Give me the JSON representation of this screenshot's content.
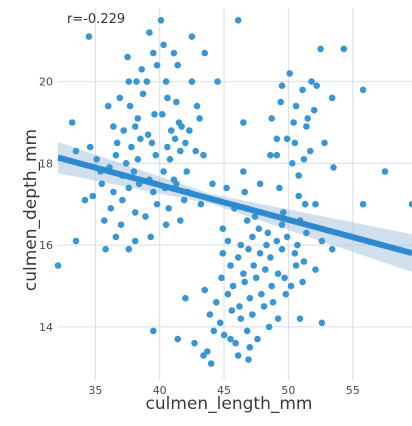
{
  "chart_data": {
    "type": "scatter",
    "title": "",
    "annotation": "r=-0.229",
    "xlabel": "culmen_length_mm",
    "ylabel": "culmen_depth_mm",
    "xlim": [
      32.1,
      59.6
    ],
    "ylim": [
      12.7,
      21.8
    ],
    "xticks": [
      35,
      40,
      45,
      50,
      55
    ],
    "yticks": [
      14,
      16,
      18,
      20
    ],
    "grid": true,
    "regression": {
      "slope": -0.085,
      "intercept": 20.87
    },
    "colors": {
      "points": "#3a95d3",
      "line": "#2e8ad0",
      "band": "#a9c7e0",
      "grid": "#d4dfe8",
      "background": "#ffffff"
    },
    "points": [
      [
        34.5,
        21.1
      ],
      [
        39.2,
        21.2
      ],
      [
        40.3,
        20.9
      ],
      [
        42.5,
        21.1
      ],
      [
        40.1,
        21.5
      ],
      [
        46.1,
        21.5
      ],
      [
        37.5,
        20.6
      ],
      [
        39.5,
        20.7
      ],
      [
        41.1,
        20.7
      ],
      [
        43.5,
        20.7
      ],
      [
        38.6,
        20.3
      ],
      [
        39.8,
        20.4
      ],
      [
        41.4,
        20.4
      ],
      [
        52.5,
        20.8
      ],
      [
        54.3,
        20.8
      ],
      [
        37.6,
        20.0
      ],
      [
        38.2,
        20.0
      ],
      [
        39.0,
        20.0
      ],
      [
        40.5,
        20.0
      ],
      [
        42.5,
        20.0
      ],
      [
        44.5,
        20.0
      ],
      [
        50.1,
        20.2
      ],
      [
        51.8,
        20.0
      ],
      [
        52.2,
        19.9
      ],
      [
        55.8,
        19.8
      ],
      [
        49.5,
        19.9
      ],
      [
        51.1,
        19.8
      ],
      [
        36.0,
        19.4
      ],
      [
        36.9,
        19.6
      ],
      [
        37.7,
        19.4
      ],
      [
        38.7,
        19.7
      ],
      [
        40.6,
        19.6
      ],
      [
        41.3,
        19.5
      ],
      [
        42.9,
        19.4
      ],
      [
        49.4,
        19.5
      ],
      [
        50.6,
        19.4
      ],
      [
        53.4,
        19.6
      ],
      [
        38.3,
        19.1
      ],
      [
        39.6,
        19.2
      ],
      [
        40.2,
        19.2
      ],
      [
        41.5,
        19.0
      ],
      [
        43.1,
        19.1
      ],
      [
        46.5,
        19.0
      ],
      [
        48.7,
        19.1
      ],
      [
        50.4,
        19.0
      ],
      [
        51.5,
        19.1
      ],
      [
        52.0,
        19.3
      ],
      [
        33.2,
        19.0
      ],
      [
        36.4,
        18.9
      ],
      [
        37.2,
        18.8
      ],
      [
        38.1,
        18.9
      ],
      [
        39.1,
        18.7
      ],
      [
        40.9,
        18.8
      ],
      [
        41.7,
        18.9
      ],
      [
        42.3,
        18.8
      ],
      [
        49.9,
        18.6
      ],
      [
        51.4,
        18.9
      ],
      [
        52.8,
        18.5
      ],
      [
        34.6,
        18.4
      ],
      [
        36.7,
        18.5
      ],
      [
        37.8,
        18.4
      ],
      [
        38.5,
        18.6
      ],
      [
        39.4,
        18.5
      ],
      [
        40.6,
        18.4
      ],
      [
        41.2,
        18.6
      ],
      [
        42.0,
        18.5
      ],
      [
        42.8,
        18.3
      ],
      [
        49.1,
        18.6
      ],
      [
        50.5,
        18.5
      ],
      [
        51.7,
        18.3
      ],
      [
        33.5,
        18.3
      ],
      [
        35.1,
        18.1
      ],
      [
        36.6,
        18.2
      ],
      [
        37.4,
        18.0
      ],
      [
        38.3,
        18.1
      ],
      [
        39.7,
        18.2
      ],
      [
        40.8,
        18.1
      ],
      [
        41.6,
        18.3
      ],
      [
        43.4,
        18.2
      ],
      [
        48.6,
        18.2
      ],
      [
        49.1,
        18.2
      ],
      [
        50.3,
        18.0
      ],
      [
        51.2,
        18.1
      ],
      [
        53.5,
        17.9
      ],
      [
        35.4,
        17.8
      ],
      [
        36.1,
        17.9
      ],
      [
        37.1,
        17.7
      ],
      [
        38.0,
        17.8
      ],
      [
        39.2,
        17.6
      ],
      [
        40.3,
        17.8
      ],
      [
        41.1,
        17.6
      ],
      [
        42.1,
        17.8
      ],
      [
        46.5,
        17.8
      ],
      [
        50.8,
        17.7
      ],
      [
        57.5,
        17.8
      ],
      [
        34.2,
        17.1
      ],
      [
        35.5,
        17.5
      ],
      [
        36.4,
        17.3
      ],
      [
        37.6,
        17.4
      ],
      [
        38.4,
        17.5
      ],
      [
        39.5,
        17.3
      ],
      [
        40.4,
        17.4
      ],
      [
        41.3,
        17.5
      ],
      [
        42.2,
        17.3
      ],
      [
        44.1,
        17.5
      ],
      [
        45.2,
        17.4
      ],
      [
        46.6,
        17.3
      ],
      [
        47.8,
        17.5
      ],
      [
        49.3,
        17.4
      ],
      [
        50.8,
        17.2
      ],
      [
        52.1,
        17.0
      ],
      [
        34.8,
        17.2
      ],
      [
        36.2,
        16.9
      ],
      [
        37.1,
        17.1
      ],
      [
        38.1,
        16.8
      ],
      [
        39.8,
        17.0
      ],
      [
        40.7,
        16.9
      ],
      [
        41.9,
        17.1
      ],
      [
        43.2,
        17.0
      ],
      [
        45.8,
        16.9
      ],
      [
        47.4,
        16.7
      ],
      [
        49.6,
        16.8
      ],
      [
        51.3,
        17.0
      ],
      [
        59.6,
        17.0
      ],
      [
        55.8,
        17.0
      ],
      [
        35.7,
        16.6
      ],
      [
        37.0,
        16.5
      ],
      [
        38.9,
        16.7
      ],
      [
        40.5,
        16.5
      ],
      [
        41.6,
        16.6
      ],
      [
        44.9,
        16.4
      ],
      [
        46.8,
        16.6
      ],
      [
        47.7,
        16.4
      ],
      [
        48.4,
        16.3
      ],
      [
        49.5,
        16.5
      ],
      [
        50.9,
        16.6
      ],
      [
        33.5,
        16.1
      ],
      [
        36.6,
        16.2
      ],
      [
        38.1,
        16.1
      ],
      [
        39.3,
        16.2
      ],
      [
        45.3,
        16.1
      ],
      [
        46.3,
        16.0
      ],
      [
        47.2,
        16.2
      ],
      [
        48.3,
        16.0
      ],
      [
        49.1,
        16.1
      ],
      [
        49.9,
        16.2
      ],
      [
        50.7,
        16.0
      ],
      [
        51.4,
        16.3
      ],
      [
        52.6,
        16.1
      ],
      [
        35.8,
        15.9
      ],
      [
        37.6,
        15.9
      ],
      [
        44.9,
        15.8
      ],
      [
        46.1,
        15.7
      ],
      [
        46.9,
        15.9
      ],
      [
        47.8,
        15.8
      ],
      [
        48.6,
        15.7
      ],
      [
        49.5,
        15.9
      ],
      [
        50.5,
        15.8
      ],
      [
        51.2,
        15.6
      ],
      [
        53.4,
        15.9
      ],
      [
        45.5,
        15.5
      ],
      [
        46.5,
        15.3
      ],
      [
        47.3,
        15.5
      ],
      [
        48.2,
        15.4
      ],
      [
        49.2,
        15.3
      ],
      [
        50.6,
        15.5
      ],
      [
        52.1,
        15.4
      ],
      [
        32.1,
        15.5
      ],
      [
        44.8,
        15.2
      ],
      [
        45.7,
        15.0
      ],
      [
        46.6,
        15.1
      ],
      [
        47.5,
        15.2
      ],
      [
        48.7,
        15.0
      ],
      [
        49.7,
        15.2
      ],
      [
        50.2,
        15.0
      ],
      [
        51.1,
        15.1
      ],
      [
        43.5,
        14.9
      ],
      [
        44.4,
        14.6
      ],
      [
        45.3,
        14.8
      ],
      [
        46.2,
        14.5
      ],
      [
        47.0,
        14.7
      ],
      [
        47.9,
        14.8
      ],
      [
        48.8,
        14.6
      ],
      [
        49.8,
        14.8
      ],
      [
        42.0,
        14.7
      ],
      [
        43.9,
        14.3
      ],
      [
        44.7,
        14.1
      ],
      [
        45.6,
        14.4
      ],
      [
        46.3,
        14.2
      ],
      [
        47.2,
        14.3
      ],
      [
        48.1,
        14.5
      ],
      [
        49.2,
        14.2
      ],
      [
        50.9,
        14.2
      ],
      [
        52.6,
        14.1
      ],
      [
        44.2,
        13.9
      ],
      [
        45.0,
        13.8
      ],
      [
        45.9,
        13.6
      ],
      [
        46.8,
        13.9
      ],
      [
        47.6,
        13.7
      ],
      [
        48.5,
        14.0
      ],
      [
        42.7,
        13.6
      ],
      [
        43.7,
        13.4
      ],
      [
        46.1,
        13.3
      ],
      [
        47.0,
        13.5
      ],
      [
        41.4,
        13.7
      ],
      [
        39.5,
        13.9
      ],
      [
        44.0,
        13.1
      ],
      [
        45.5,
        13.7
      ],
      [
        43.4,
        13.3
      ],
      [
        46.9,
        13.2
      ]
    ]
  }
}
